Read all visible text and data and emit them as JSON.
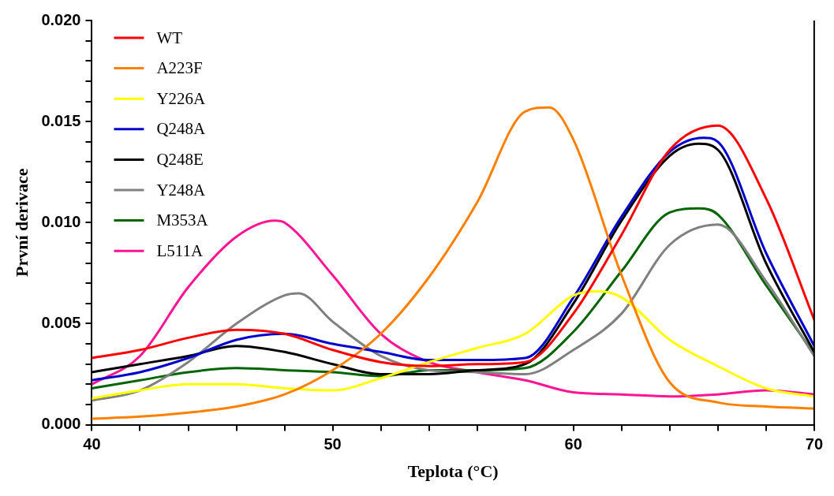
{
  "chart_data": {
    "type": "line",
    "xlabel": "Teplota (°C)",
    "ylabel": "První derivace",
    "xlim": [
      40,
      70
    ],
    "ylim": [
      0,
      0.02
    ],
    "xticks": [
      40,
      {
        "value": 42,
        "label": null
      },
      {
        "value": 44,
        "label": null
      },
      {
        "value": 46,
        "label": null
      },
      {
        "value": 48,
        "label": null
      },
      50,
      {
        "value": 52,
        "label": null
      },
      {
        "value": 54,
        "label": null
      },
      {
        "value": 56,
        "label": null
      },
      {
        "value": 58,
        "label": null
      },
      60,
      {
        "value": 62,
        "label": null
      },
      {
        "value": 64,
        "label": null
      },
      {
        "value": 66,
        "label": null
      },
      {
        "value": 68,
        "label": null
      },
      70
    ],
    "yticks": [
      {
        "value": 0,
        "label": "0.000"
      },
      {
        "value": 0.001,
        "label": null
      },
      {
        "value": 0.002,
        "label": null
      },
      {
        "value": 0.003,
        "label": null
      },
      {
        "value": 0.004,
        "label": null
      },
      {
        "value": 0.005,
        "label": "0.005"
      },
      {
        "value": 0.006,
        "label": null
      },
      {
        "value": 0.007,
        "label": null
      },
      {
        "value": 0.008,
        "label": null
      },
      {
        "value": 0.009,
        "label": null
      },
      {
        "value": 0.01,
        "label": "0.010"
      },
      {
        "value": 0.011,
        "label": null
      },
      {
        "value": 0.012,
        "label": null
      },
      {
        "value": 0.013,
        "label": null
      },
      {
        "value": 0.014,
        "label": null
      },
      {
        "value": 0.015,
        "label": "0.015"
      },
      {
        "value": 0.016,
        "label": null
      },
      {
        "value": 0.017,
        "label": null
      },
      {
        "value": 0.018,
        "label": null
      },
      {
        "value": 0.019,
        "label": null
      },
      {
        "value": 0.02,
        "label": "0.020"
      }
    ],
    "grid": false,
    "legend": "top left",
    "marker": "none",
    "line_style": "solid",
    "series": [
      {
        "name": "WT",
        "color": "#ff0000",
        "x": [
          40,
          42,
          44,
          46,
          48,
          50,
          52,
          54,
          56,
          58,
          60,
          62,
          64,
          66,
          68,
          70
        ],
        "values": [
          0.0033,
          0.0037,
          0.0043,
          0.0047,
          0.0045,
          0.0037,
          0.0031,
          0.0029,
          0.003,
          0.0031,
          0.0055,
          0.0094,
          0.0136,
          0.0148,
          0.0112,
          0.0052
        ]
      },
      {
        "name": "A223F",
        "color": "#ff8000",
        "x": [
          40,
          42,
          44,
          46,
          48,
          50,
          52,
          54,
          56,
          58,
          59,
          60,
          62,
          64,
          66,
          68,
          70
        ],
        "values": [
          0.0003,
          0.0004,
          0.0006,
          0.0009,
          0.0015,
          0.0027,
          0.0045,
          0.0073,
          0.011,
          0.0155,
          0.0157,
          0.0141,
          0.0074,
          0.0021,
          0.0011,
          0.0009,
          0.0008
        ]
      },
      {
        "name": "Y226A",
        "color": "#ffff00",
        "x": [
          40,
          42,
          44,
          46,
          48,
          50,
          52,
          54,
          56,
          58,
          60,
          61,
          62,
          64,
          66,
          68,
          70
        ],
        "values": [
          0.0013,
          0.0017,
          0.002,
          0.002,
          0.0018,
          0.0017,
          0.0023,
          0.0031,
          0.0038,
          0.0045,
          0.0064,
          0.0066,
          0.0063,
          0.0042,
          0.0029,
          0.0018,
          0.0014
        ]
      },
      {
        "name": "Q248A",
        "color": "#0000cc",
        "x": [
          40,
          42,
          44,
          46,
          48,
          50,
          52,
          54,
          56,
          58,
          60,
          62,
          64,
          65.4,
          66,
          68,
          70
        ],
        "values": [
          0.0022,
          0.0026,
          0.0033,
          0.0042,
          0.0045,
          0.004,
          0.0036,
          0.0032,
          0.0032,
          0.0033,
          0.0063,
          0.0103,
          0.0135,
          0.0142,
          0.014,
          0.0085,
          0.0039
        ]
      },
      {
        "name": "Q248E",
        "color": "#000000",
        "x": [
          40,
          42,
          44,
          46,
          48,
          50,
          52,
          54,
          56,
          58,
          60,
          62,
          64,
          65.2,
          66,
          68,
          70
        ],
        "values": [
          0.0026,
          0.003,
          0.0034,
          0.0039,
          0.0036,
          0.003,
          0.0025,
          0.0025,
          0.0027,
          0.003,
          0.006,
          0.0101,
          0.0133,
          0.0139,
          0.0136,
          0.008,
          0.0036
        ]
      },
      {
        "name": "Y248A",
        "color": "#808080",
        "x": [
          40,
          42,
          44,
          46,
          48,
          48.6,
          50,
          52,
          54,
          56,
          58,
          60,
          62,
          64,
          66,
          68,
          70
        ],
        "values": [
          0.0012,
          0.0017,
          0.0031,
          0.005,
          0.0064,
          0.0065,
          0.0051,
          0.0034,
          0.0027,
          0.0026,
          0.0025,
          0.0037,
          0.0055,
          0.0089,
          0.0099,
          0.0071,
          0.0034
        ]
      },
      {
        "name": "M353A",
        "color": "#006400",
        "x": [
          40,
          42,
          44,
          46,
          48,
          50,
          52,
          54,
          56,
          58,
          60,
          62,
          64,
          65.2,
          66,
          68,
          70
        ],
        "values": [
          0.0018,
          0.0022,
          0.0026,
          0.0028,
          0.0027,
          0.0026,
          0.0024,
          0.0027,
          0.0027,
          0.0028,
          0.0046,
          0.0076,
          0.0105,
          0.0107,
          0.0104,
          0.0069,
          0.0035
        ]
      },
      {
        "name": "L511A",
        "color": "#ff1493",
        "x": [
          40,
          42,
          44,
          46,
          47.6,
          48,
          50,
          52,
          54,
          56,
          58,
          60,
          62,
          64,
          66,
          68,
          70
        ],
        "values": [
          0.002,
          0.0034,
          0.0068,
          0.0093,
          0.0101,
          0.01,
          0.0074,
          0.0045,
          0.0031,
          0.0026,
          0.0022,
          0.0016,
          0.0015,
          0.0014,
          0.0015,
          0.0017,
          0.0015
        ]
      }
    ]
  }
}
